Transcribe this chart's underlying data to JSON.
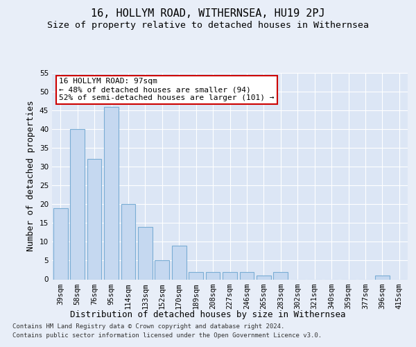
{
  "title": "16, HOLLYM ROAD, WITHERNSEA, HU19 2PJ",
  "subtitle": "Size of property relative to detached houses in Withernsea",
  "xlabel": "Distribution of detached houses by size in Withernsea",
  "ylabel": "Number of detached properties",
  "categories": [
    "39sqm",
    "58sqm",
    "76sqm",
    "95sqm",
    "114sqm",
    "133sqm",
    "152sqm",
    "170sqm",
    "189sqm",
    "208sqm",
    "227sqm",
    "246sqm",
    "265sqm",
    "283sqm",
    "302sqm",
    "321sqm",
    "340sqm",
    "359sqm",
    "377sqm",
    "396sqm",
    "415sqm"
  ],
  "values": [
    19,
    40,
    32,
    46,
    20,
    14,
    5,
    9,
    2,
    2,
    2,
    2,
    1,
    2,
    0,
    0,
    0,
    0,
    0,
    1,
    0
  ],
  "highlight_index": 3,
  "bar_color_normal": "#c5d8f0",
  "bar_color_highlight": "#c5d8f0",
  "bar_edge_color": "#7aadd4",
  "highlight_edge_color": "#7aadd4",
  "ylim": [
    0,
    55
  ],
  "yticks": [
    0,
    5,
    10,
    15,
    20,
    25,
    30,
    35,
    40,
    45,
    50,
    55
  ],
  "bg_color": "#e8eef8",
  "plot_bg_color": "#dce6f5",
  "annotation_text": "16 HOLLYM ROAD: 97sqm\n← 48% of detached houses are smaller (94)\n52% of semi-detached houses are larger (101) →",
  "annotation_box_color": "#ffffff",
  "annotation_border_color": "#cc0000",
  "footer_line1": "Contains HM Land Registry data © Crown copyright and database right 2024.",
  "footer_line2": "Contains public sector information licensed under the Open Government Licence v3.0.",
  "title_fontsize": 11,
  "subtitle_fontsize": 9.5,
  "tick_fontsize": 7.5,
  "ylabel_fontsize": 9,
  "xlabel_fontsize": 9
}
